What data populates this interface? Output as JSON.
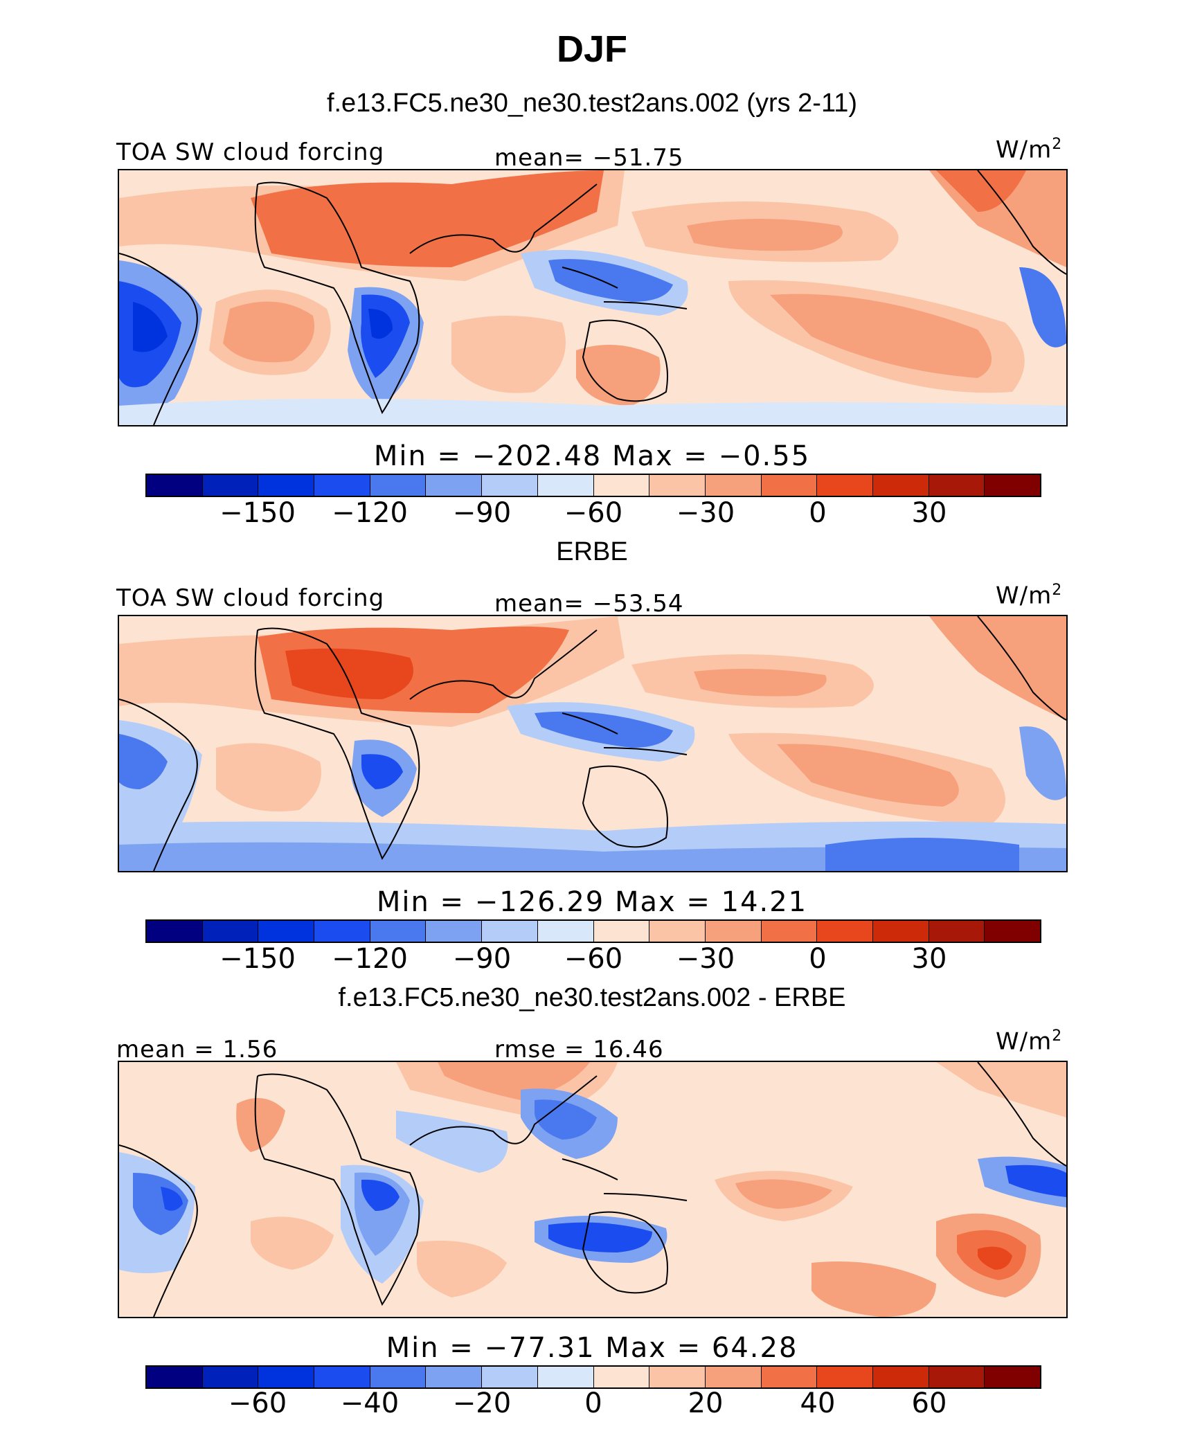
{
  "title": "DJF",
  "panels": [
    {
      "case_title": "f.e13.FC5.ne30_ne30.test2ans.002 (yrs 2-11)",
      "left_label": "TOA SW cloud forcing",
      "center_label": "mean= −51.75",
      "units": "W/m",
      "units_sup": "2",
      "min_max": "Min  =  −202.48  Max  =   −0.55",
      "colorbar_ticks": [
        "−150",
        "−120",
        "−90",
        "−60",
        "−30",
        "0",
        "30"
      ]
    },
    {
      "case_title": "ERBE",
      "left_label": "TOA SW cloud forcing",
      "center_label": "mean= −53.54",
      "units": "W/m",
      "units_sup": "2",
      "min_max": "Min  =  −126.29  Max  =   14.21",
      "colorbar_ticks": [
        "−150",
        "−120",
        "−90",
        "−60",
        "−30",
        "0",
        "30"
      ]
    },
    {
      "case_title": "f.e13.FC5.ne30_ne30.test2ans.002 - ERBE",
      "left_label": "mean  =    1.56",
      "center_label": "rmse  =   16.46",
      "units": "W/m",
      "units_sup": "2",
      "min_max": "Min  =  −77.31  Max  =   64.28",
      "colorbar_ticks": [
        "−60",
        "−40",
        "−20",
        "0",
        "20",
        "40",
        "60"
      ]
    }
  ],
  "colors": {
    "palette": [
      "#000080",
      "#0022bb",
      "#0033dd",
      "#1a4cf0",
      "#4a78ee",
      "#7ea2f2",
      "#b4cdf8",
      "#d9e7fb",
      "#fde4d2",
      "#fbc4a6",
      "#f6a07c",
      "#f27046",
      "#e8461d",
      "#cc2a08",
      "#a81808",
      "#800000"
    ],
    "land_outline": "#000000"
  },
  "chart_data": [
    {
      "type": "heatmap",
      "title": "f.e13.FC5.ne30_ne30.test2ans.002 (yrs 2-11)",
      "variable": "TOA SW cloud forcing",
      "units": "W/m2",
      "mean": -51.75,
      "min": -202.48,
      "max": -0.55,
      "colorbar_ticks": [
        -150,
        -120,
        -90,
        -60,
        -30,
        0,
        30
      ]
    },
    {
      "type": "heatmap",
      "title": "ERBE",
      "variable": "TOA SW cloud forcing",
      "units": "W/m2",
      "mean": -53.54,
      "min": -126.29,
      "max": 14.21,
      "colorbar_ticks": [
        -150,
        -120,
        -90,
        -60,
        -30,
        0,
        30
      ]
    },
    {
      "type": "heatmap",
      "title": "f.e13.FC5.ne30_ne30.test2ans.002 - ERBE",
      "units": "W/m2",
      "mean": 1.56,
      "rmse": 16.46,
      "min": -77.31,
      "max": 64.28,
      "colorbar_ticks": [
        -60,
        -40,
        -20,
        0,
        20,
        40,
        60
      ]
    }
  ]
}
